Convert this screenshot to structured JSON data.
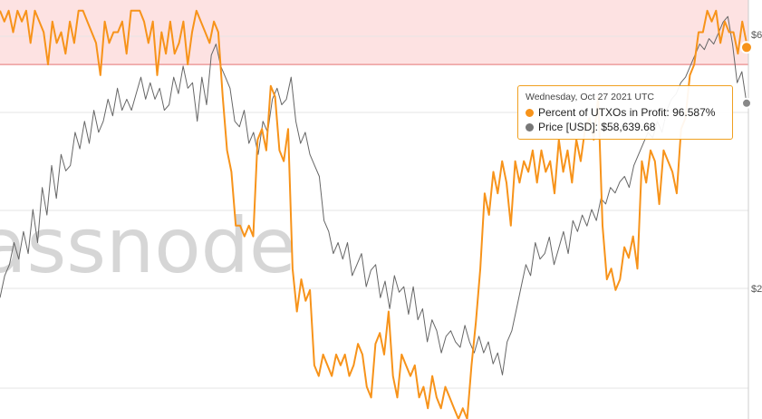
{
  "colors": {
    "utxo_line": "#f7931a",
    "price_line": "#666666",
    "zone_fill": "#fde2e2",
    "zone_edge": "#e57373",
    "tooltip_border": "#f0a020"
  },
  "watermark_text": "assnode",
  "right_axis": {
    "labels": [
      "$6",
      "$2"
    ]
  },
  "tooltip": {
    "date": "Wednesday, Oct 27 2021 UTC",
    "rows": [
      {
        "label": "Percent of UTXOs in Profit:",
        "value": "96.587%",
        "color": "#f7931a",
        "icon": "dot-orange"
      },
      {
        "label": "Price [USD]:",
        "value": "$58,639.68",
        "color": "#777777",
        "icon": "dot-gray"
      }
    ]
  },
  "chart_data": {
    "type": "line",
    "title": "",
    "xlabel": "",
    "ylabel": "",
    "ylim": [
      62,
      101
    ],
    "zone": {
      "from": 95,
      "to": 101
    },
    "series": [
      {
        "name": "Percent of UTXOs in Profit",
        "axis": "left",
        "values": [
          100,
          99,
          100,
          98,
          100,
          99,
          100,
          97,
          100,
          99,
          98,
          95,
          99,
          97,
          98,
          96,
          99,
          97,
          100,
          100,
          99,
          98,
          97,
          94,
          99,
          97,
          98,
          98,
          99,
          96,
          100,
          100,
          100,
          99,
          97,
          99,
          94,
          98,
          96,
          99,
          96,
          97,
          99,
          95,
          98,
          100,
          99,
          98,
          97,
          99,
          98,
          92,
          87,
          85,
          80,
          80,
          79,
          80,
          79,
          88,
          89,
          87,
          93,
          92,
          87,
          86,
          89,
          76,
          72,
          75,
          73,
          74,
          67,
          66,
          68,
          67,
          66,
          68,
          67,
          68,
          66,
          67,
          69,
          68,
          65,
          64,
          69,
          70,
          68,
          72,
          66,
          64,
          68,
          67,
          66,
          67,
          64,
          65,
          63,
          66,
          64,
          63,
          65,
          64,
          63,
          62,
          63,
          62,
          67,
          71,
          76,
          83,
          81,
          85,
          83,
          86,
          84,
          80,
          86,
          84,
          86,
          85,
          87,
          84,
          87,
          85,
          86,
          83,
          88,
          85,
          87,
          84,
          88,
          86,
          89,
          90,
          88,
          92,
          80,
          75,
          76,
          74,
          75,
          78,
          77,
          79,
          76,
          86,
          84,
          87,
          86,
          82,
          87,
          86,
          85,
          83,
          89,
          90,
          94,
          95,
          98,
          98,
          100,
          99,
          100,
          97,
          99,
          98,
          98,
          96,
          99,
          97
        ]
      },
      {
        "name": "Price [USD]",
        "axis": "right",
        "values": [
          41000,
          43000,
          44000,
          46000,
          44500,
          47000,
          45000,
          49000,
          46000,
          51000,
          48500,
          53000,
          50000,
          54000,
          52500,
          53000,
          56000,
          54500,
          57000,
          55000,
          58000,
          56000,
          57000,
          59000,
          57500,
          60000,
          58000,
          59000,
          58000,
          59500,
          61000,
          59000,
          60500,
          59000,
          60000,
          58000,
          58500,
          61000,
          59500,
          62000,
          60000,
          60500,
          57000,
          61000,
          58500,
          63000,
          64000,
          62000,
          61000,
          60000,
          57000,
          56500,
          58000,
          55000,
          56000,
          54000,
          57000,
          56000,
          59000,
          60000,
          58500,
          59000,
          61000,
          57000,
          55000,
          56000,
          54000,
          53000,
          52000,
          48000,
          47000,
          45000,
          46000,
          44500,
          46000,
          43000,
          44000,
          45000,
          42000,
          43500,
          44000,
          41000,
          42500,
          40000,
          43000,
          41500,
          42000,
          39500,
          42000,
          39000,
          40000,
          37000,
          39000,
          38000,
          36000,
          37500,
          38000,
          37000,
          36500,
          38500,
          37000,
          36000,
          37500,
          36000,
          37000,
          35000,
          36000,
          34000,
          37000,
          38000,
          40000,
          42000,
          44000,
          43000,
          46000,
          44500,
          45000,
          46500,
          44000,
          45500,
          47000,
          45000,
          48000,
          47000,
          48500,
          47500,
          49000,
          48000,
          50000,
          49500,
          51000,
          50500,
          51500,
          52000,
          51000,
          53000,
          54000,
          55000,
          56000,
          55500,
          57000,
          56000,
          58000,
          59000,
          59500,
          60500,
          61000,
          62000,
          63000,
          64000,
          63500,
          64500,
          64000,
          65000,
          66000,
          66500,
          64000,
          60500,
          61500,
          58639.68
        ]
      }
    ],
    "highlight": {
      "date": "Oct 27 2021",
      "utxo_percent": 96.587,
      "price_usd": 58639.68
    }
  }
}
